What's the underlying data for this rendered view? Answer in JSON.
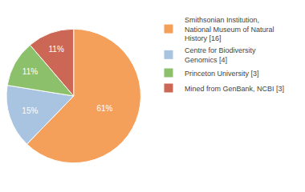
{
  "chart_data": {
    "type": "pie",
    "categories": [
      "Smithsonian Institution,\nNational Museum of Natural\nHistory [16]",
      "Centre for Biodiversity\nGenomics [4]",
      "Princeton University [3]",
      "Mined from GenBank, NCBI [3]"
    ],
    "values": [
      61,
      15,
      11,
      11
    ],
    "value_labels": [
      "61%",
      "15%",
      "11%",
      "11%"
    ],
    "colors": [
      "#F5A05A",
      "#A8C4E0",
      "#8DC06A",
      "#CC6655"
    ],
    "data_labels": true,
    "legend": "upper right"
  }
}
